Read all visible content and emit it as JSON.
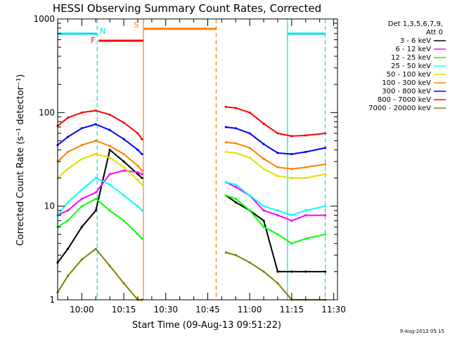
{
  "chart_data": {
    "type": "line",
    "title": "HESSI Observing Summary Count Rates, Corrected",
    "xlabel": "Start Time (09-Aug-13 09:51:22)",
    "ylabel": "Corrected Count Rate (s⁻¹ detector⁻¹)",
    "x_ticks": [
      "10:00",
      "10:15",
      "10:30",
      "10:45",
      "11:00",
      "11:15",
      "11:30"
    ],
    "y_ticks": [
      "1",
      "10",
      "100",
      "1000"
    ],
    "y_scale": "log",
    "ylim": [
      1,
      1000
    ],
    "xlim": [
      "09:51:22",
      "11:31:22"
    ],
    "legend_title": [
      "Det 1,3,5,6,7,9,",
      "Att 0"
    ],
    "legend_position": "outside-right",
    "footer": "9-Aug-2013 05:15",
    "flags": [
      {
        "label": "N",
        "color": "#00e0e0",
        "start": "09:51:22",
        "end": "10:05:30"
      },
      {
        "label": "F",
        "color": "#ff0000",
        "start": "10:06:00",
        "end": "10:22:00"
      },
      {
        "label": "S",
        "color": "#ff8000",
        "start": "10:22:00",
        "end": "10:48:00"
      },
      {
        "label": "",
        "color": "#00e0e0",
        "start": "11:13:30",
        "end": "11:27:00"
      }
    ],
    "event_lines": [
      {
        "t": "09:51:22",
        "color": "#00e0e0",
        "style": "solid"
      },
      {
        "t": "10:05:30",
        "color": "#00e0e0",
        "style": "dashed"
      },
      {
        "t": "10:22:00",
        "color": "#ff8000",
        "style": "solid"
      },
      {
        "t": "10:48:00",
        "color": "#ff8000",
        "style": "dashed"
      },
      {
        "t": "11:13:30",
        "color": "#00e0e0",
        "style": "solid"
      },
      {
        "t": "11:27:00",
        "color": "#00e0e0",
        "style": "dashed"
      }
    ],
    "series": [
      {
        "name": "3 - 6 keV",
        "color": "#000000",
        "segments": [
          {
            "x": [
              "09:51:22",
              "09:55",
              "10:00",
              "10:05",
              "10:10",
              "10:15",
              "10:20",
              "10:21:30"
            ],
            "y": [
              2.5,
              3.5,
              6,
              9,
              40,
              30,
              22,
              20
            ]
          },
          {
            "x": [
              "10:51:30",
              "10:55",
              "11:00",
              "11:05",
              "11:10",
              "11:15",
              "11:20",
              "11:27"
            ],
            "y": [
              13,
              11,
              9,
              7,
              2,
              2,
              2,
              2
            ]
          }
        ]
      },
      {
        "name": "6 - 12 keV",
        "color": "#ff00ff",
        "segments": [
          {
            "x": [
              "09:51:22",
              "09:55",
              "10:00",
              "10:05",
              "10:10",
              "10:15",
              "10:20",
              "10:21:30"
            ],
            "y": [
              8,
              9,
              12,
              14,
              22,
              24,
              23,
              22
            ]
          },
          {
            "x": [
              "10:51:30",
              "10:55",
              "11:00",
              "11:05",
              "11:10",
              "11:15",
              "11:20",
              "11:27"
            ],
            "y": [
              18,
              16,
              13,
              9,
              8,
              7,
              8,
              8
            ]
          }
        ]
      },
      {
        "name": "12 - 25 keV",
        "color": "#00ff00",
        "segments": [
          {
            "x": [
              "09:51:22",
              "09:55",
              "10:00",
              "10:05",
              "10:10",
              "10:15",
              "10:20",
              "10:21:30"
            ],
            "y": [
              6,
              7,
              10,
              12,
              9,
              7,
              5,
              4.5
            ]
          },
          {
            "x": [
              "10:51:30",
              "10:55",
              "11:00",
              "11:05",
              "11:10",
              "11:15",
              "11:20",
              "11:27"
            ],
            "y": [
              13,
              12,
              9,
              6,
              5,
              4,
              4.5,
              5
            ]
          }
        ]
      },
      {
        "name": "25 - 50 keV",
        "color": "#00ffff",
        "segments": [
          {
            "x": [
              "09:51:22",
              "09:55",
              "10:00",
              "10:05",
              "10:10",
              "10:15",
              "10:20",
              "10:21:30"
            ],
            "y": [
              8,
              11,
              15,
              20,
              17,
              13,
              10,
              9
            ]
          },
          {
            "x": [
              "10:51:30",
              "10:55",
              "11:00",
              "11:05",
              "11:10",
              "11:15",
              "11:20",
              "11:27"
            ],
            "y": [
              18,
              17,
              13,
              10,
              9,
              8,
              9,
              10
            ]
          }
        ]
      },
      {
        "name": "50 - 100 keV",
        "color": "#e0e000",
        "segments": [
          {
            "x": [
              "09:51:22",
              "09:55",
              "10:00",
              "10:05",
              "10:10",
              "10:15",
              "10:20",
              "10:21:30"
            ],
            "y": [
              20,
              25,
              32,
              36,
              33,
              26,
              19,
              17
            ]
          },
          {
            "x": [
              "10:51:30",
              "10:55",
              "11:00",
              "11:05",
              "11:10",
              "11:15",
              "11:20",
              "11:27"
            ],
            "y": [
              38,
              37,
              33,
              25,
              21,
              20,
              20,
              22
            ]
          }
        ]
      },
      {
        "name": "100 - 300 keV",
        "color": "#ff8000",
        "segments": [
          {
            "x": [
              "09:51:22",
              "09:55",
              "10:00",
              "10:05",
              "10:10",
              "10:15",
              "10:20",
              "10:21:30"
            ],
            "y": [
              30,
              38,
              45,
              50,
              44,
              36,
              27,
              24
            ]
          },
          {
            "x": [
              "10:51:30",
              "10:55",
              "11:00",
              "11:05",
              "11:10",
              "11:15",
              "11:20",
              "11:27"
            ],
            "y": [
              48,
              47,
              42,
              32,
              26,
              25,
              26,
              28
            ]
          }
        ]
      },
      {
        "name": "300 - 800 keV",
        "color": "#0000ff",
        "segments": [
          {
            "x": [
              "09:51:22",
              "09:55",
              "10:00",
              "10:05",
              "10:10",
              "10:15",
              "10:20",
              "10:21:30"
            ],
            "y": [
              45,
              55,
              68,
              75,
              65,
              52,
              40,
              36
            ]
          },
          {
            "x": [
              "10:51:30",
              "10:55",
              "11:00",
              "11:05",
              "11:10",
              "11:15",
              "11:20",
              "11:27"
            ],
            "y": [
              70,
              68,
              60,
              46,
              37,
              36,
              38,
              42
            ]
          }
        ]
      },
      {
        "name": "800 - 7000 keV",
        "color": "#ff0000",
        "segments": [
          {
            "x": [
              "09:51:22",
              "09:55",
              "10:00",
              "10:05",
              "10:10",
              "10:15",
              "10:20",
              "10:21:30"
            ],
            "y": [
              72,
              88,
              100,
              105,
              95,
              78,
              60,
              52
            ]
          },
          {
            "x": [
              "10:51:30",
              "10:55",
              "11:00",
              "11:05",
              "11:10",
              "11:15",
              "11:20",
              "11:27"
            ],
            "y": [
              115,
              112,
              100,
              76,
              60,
              56,
              57,
              60
            ]
          }
        ]
      },
      {
        "name": "7000 - 20000 keV",
        "color": "#808000",
        "segments": [
          {
            "x": [
              "09:51:22",
              "09:55",
              "10:00",
              "10:05",
              "10:10",
              "10:15",
              "10:20",
              "10:21:30"
            ],
            "y": [
              1.2,
              1.8,
              2.7,
              3.5,
              2.3,
              1.5,
              1,
              1
            ]
          },
          {
            "x": [
              "10:51:30",
              "10:55",
              "11:00",
              "11:05",
              "11:10",
              "11:15",
              "11:20",
              "11:27"
            ],
            "y": [
              3.2,
              3,
              2.5,
              2,
              1.5,
              1,
              1,
              1
            ]
          }
        ]
      }
    ]
  }
}
